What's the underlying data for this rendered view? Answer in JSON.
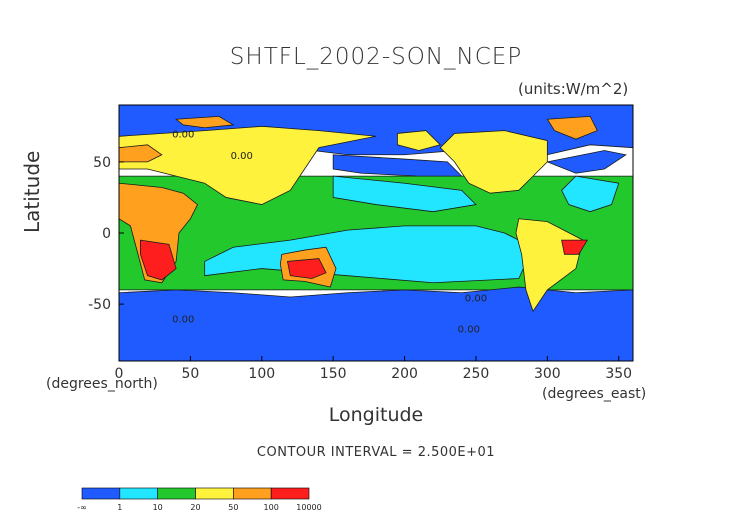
{
  "chart_data": {
    "type": "heatmap",
    "title": "SHTFL_2002-SON_NCEP",
    "units": "(units:W/m^2)",
    "xlabel": "Longitude",
    "ylabel": "Latitude",
    "x_unit": "(degrees_east)",
    "y_unit": "(degrees_north)",
    "xlim": [
      0,
      360
    ],
    "ylim": [
      -90,
      90
    ],
    "x_ticks": [
      0,
      50,
      100,
      150,
      200,
      250,
      300,
      350
    ],
    "y_ticks": [
      -50,
      0,
      50
    ],
    "contour_interval": "CONTOUR INTERVAL = 2.500E+01",
    "contour_labels": [
      "0.00",
      "0.00",
      "0.00",
      "0.00",
      "0.00"
    ],
    "colorbar": {
      "labels": [
        "-∞",
        "1",
        "10",
        "20",
        "50",
        "100",
        "10000"
      ],
      "colors": [
        "#1f5bff",
        "#22e6ff",
        "#22c82c",
        "#fff23c",
        "#ffa01e",
        "#ff1e1e"
      ]
    },
    "regions": [
      {
        "name": "background",
        "value_class": 2,
        "polys": [
          [
            [
              0,
              -40
            ],
            [
              360,
              -40
            ],
            [
              360,
              40
            ],
            [
              0,
              40
            ]
          ]
        ]
      },
      {
        "name": "tropical-ocean",
        "value_class": 1,
        "polys": [
          [
            [
              60,
              -30
            ],
            [
              100,
              -25
            ],
            [
              160,
              -30
            ],
            [
              220,
              -35
            ],
            [
              280,
              -32
            ],
            [
              290,
              -10
            ],
            [
              270,
              0
            ],
            [
              250,
              5
            ],
            [
              200,
              5
            ],
            [
              160,
              2
            ],
            [
              120,
              -5
            ],
            [
              80,
              -10
            ],
            [
              60,
              -20
            ]
          ],
          [
            [
              150,
              40
            ],
            [
              200,
              35
            ],
            [
              240,
              30
            ],
            [
              250,
              20
            ],
            [
              220,
              15
            ],
            [
              180,
              20
            ],
            [
              150,
              25
            ]
          ],
          [
            [
              320,
              40
            ],
            [
              350,
              35
            ],
            [
              345,
              20
            ],
            [
              330,
              15
            ],
            [
              315,
              20
            ],
            [
              310,
              30
            ]
          ]
        ]
      },
      {
        "name": "southern-ocean",
        "value_class": 0,
        "polys": [
          [
            [
              0,
              -90
            ],
            [
              360,
              -90
            ],
            [
              360,
              -40
            ],
            [
              320,
              -42
            ],
            [
              280,
              -38
            ],
            [
              240,
              -42
            ],
            [
              200,
              -40
            ],
            [
              160,
              -42
            ],
            [
              120,
              -45
            ],
            [
              80,
              -42
            ],
            [
              40,
              -40
            ],
            [
              0,
              -42
            ]
          ]
        ]
      },
      {
        "name": "arctic",
        "value_class": 0,
        "polys": [
          [
            [
              0,
              90
            ],
            [
              360,
              90
            ],
            [
              360,
              60
            ],
            [
              330,
              62
            ],
            [
              300,
              55
            ],
            [
              260,
              60
            ],
            [
              200,
              55
            ],
            [
              160,
              55
            ],
            [
              120,
              60
            ],
            [
              60,
              62
            ],
            [
              0,
              60
            ]
          ]
        ]
      },
      {
        "name": "north-pacific",
        "value_class": 0,
        "polys": [
          [
            [
              150,
              55
            ],
            [
              200,
              52
            ],
            [
              230,
              50
            ],
            [
              240,
              40
            ],
            [
              210,
              40
            ],
            [
              170,
              42
            ],
            [
              150,
              45
            ]
          ]
        ]
      },
      {
        "name": "north-atlantic",
        "value_class": 0,
        "polys": [
          [
            [
              300,
              50
            ],
            [
              340,
              58
            ],
            [
              355,
              55
            ],
            [
              340,
              45
            ],
            [
              320,
              42
            ]
          ]
        ]
      },
      {
        "name": "north-america",
        "value_class": 3,
        "polys": [
          [
            [
              235,
              70
            ],
            [
              270,
              72
            ],
            [
              300,
              65
            ],
            [
              300,
              50
            ],
            [
              290,
              40
            ],
            [
              280,
              30
            ],
            [
              260,
              28
            ],
            [
              245,
              35
            ],
            [
              235,
              50
            ],
            [
              225,
              60
            ]
          ]
        ]
      },
      {
        "name": "south-america",
        "value_class": 3,
        "polys": [
          [
            [
              280,
              10
            ],
            [
              300,
              8
            ],
            [
              325,
              -5
            ],
            [
              320,
              -25
            ],
            [
              300,
              -40
            ],
            [
              290,
              -55
            ],
            [
              285,
              -40
            ],
            [
              282,
              -15
            ],
            [
              278,
              0
            ]
          ]
        ]
      },
      {
        "name": "eurasia",
        "value_class": 3,
        "polys": [
          [
            [
              0,
              68
            ],
            [
              60,
              72
            ],
            [
              100,
              75
            ],
            [
              140,
              72
            ],
            [
              180,
              68
            ],
            [
              140,
              60
            ],
            [
              130,
              45
            ],
            [
              120,
              30
            ],
            [
              100,
              20
            ],
            [
              75,
              25
            ],
            [
              60,
              35
            ],
            [
              40,
              40
            ],
            [
              20,
              45
            ],
            [
              0,
              45
            ]
          ]
        ]
      },
      {
        "name": "africa-arabia",
        "value_class": 4,
        "polys": [
          [
            [
              0,
              35
            ],
            [
              30,
              32
            ],
            [
              45,
              28
            ],
            [
              55,
              20
            ],
            [
              50,
              10
            ],
            [
              42,
              0
            ],
            [
              40,
              -20
            ],
            [
              30,
              -35
            ],
            [
              18,
              -33
            ],
            [
              12,
              -10
            ],
            [
              8,
              5
            ],
            [
              0,
              10
            ]
          ]
        ]
      },
      {
        "name": "south-africa",
        "value_class": 5,
        "polys": [
          [
            [
              15,
              -5
            ],
            [
              35,
              -8
            ],
            [
              40,
              -25
            ],
            [
              30,
              -33
            ],
            [
              20,
              -30
            ],
            [
              15,
              -15
            ]
          ]
        ]
      },
      {
        "name": "brazil",
        "value_class": 5,
        "polys": [
          [
            [
              310,
              -5
            ],
            [
              328,
              -5
            ],
            [
              322,
              -15
            ],
            [
              312,
              -15
            ]
          ]
        ]
      },
      {
        "name": "australia",
        "value_class": 4,
        "polys": [
          [
            [
              114,
              -15
            ],
            [
              130,
              -12
            ],
            [
              145,
              -10
            ],
            [
              152,
              -25
            ],
            [
              148,
              -38
            ],
            [
              130,
              -34
            ],
            [
              115,
              -33
            ],
            [
              113,
              -22
            ]
          ]
        ]
      },
      {
        "name": "australia-core",
        "value_class": 5,
        "polys": [
          [
            [
              118,
              -20
            ],
            [
              140,
              -18
            ],
            [
              145,
              -28
            ],
            [
              135,
              -32
            ],
            [
              120,
              -30
            ]
          ]
        ]
      },
      {
        "name": "north-africa-rim",
        "value_class": 4,
        "polys": [
          [
            [
              0,
              60
            ],
            [
              20,
              62
            ],
            [
              30,
              55
            ],
            [
              20,
              50
            ],
            [
              0,
              50
            ]
          ]
        ]
      },
      {
        "name": "alaska-yellow",
        "value_class": 3,
        "polys": [
          [
            [
              195,
              70
            ],
            [
              215,
              72
            ],
            [
              225,
              62
            ],
            [
              210,
              58
            ],
            [
              195,
              62
            ]
          ]
        ]
      },
      {
        "name": "siberia-orange",
        "value_class": 4,
        "polys": [
          [
            [
              40,
              80
            ],
            [
              70,
              82
            ],
            [
              80,
              76
            ],
            [
              60,
              74
            ],
            [
              45,
              76
            ]
          ]
        ]
      },
      {
        "name": "greenland",
        "value_class": 4,
        "polys": [
          [
            [
              300,
              80
            ],
            [
              330,
              82
            ],
            [
              335,
              72
            ],
            [
              320,
              66
            ],
            [
              305,
              72
            ]
          ]
        ]
      }
    ],
    "label_points": [
      [
        45,
        67
      ],
      [
        86,
        52
      ],
      [
        250,
        -48
      ],
      [
        45,
        -63
      ],
      [
        245,
        -70
      ]
    ]
  }
}
